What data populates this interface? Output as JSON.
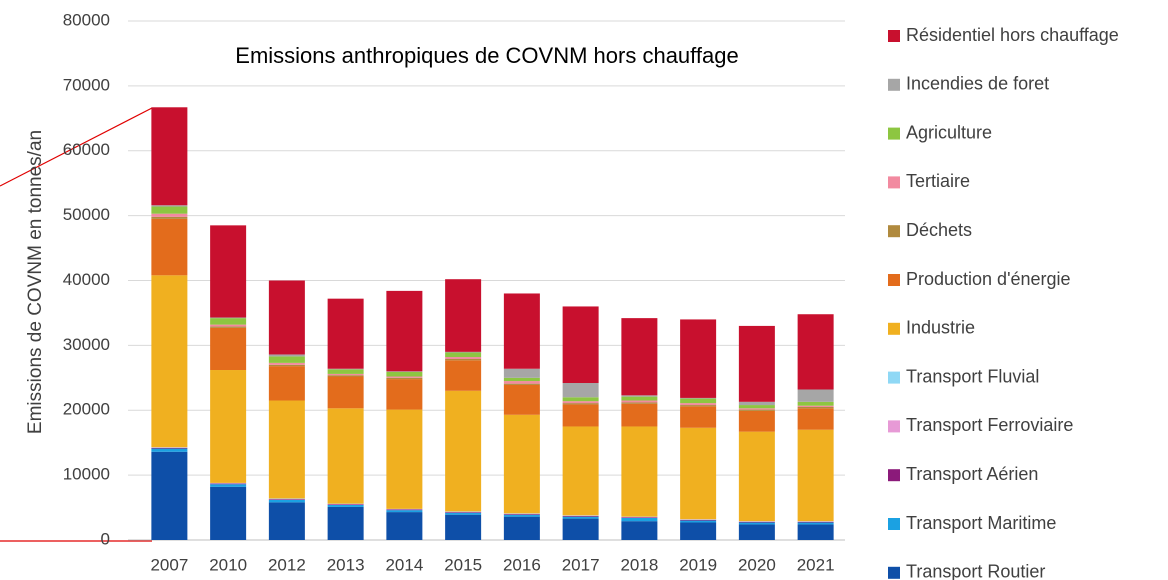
{
  "chart_data": {
    "type": "bar",
    "stacked": true,
    "title": "Emissions anthropiques de COVNM hors chauffage",
    "ylabel": "Emissions de COVNM en tonnes/an",
    "categories": [
      "2007",
      "2010",
      "2012",
      "2013",
      "2014",
      "2015",
      "2016",
      "2017",
      "2018",
      "2019",
      "2020",
      "2021"
    ],
    "ylim": [
      0,
      80000
    ],
    "yticks": [
      0,
      10000,
      20000,
      30000,
      40000,
      50000,
      60000,
      70000,
      80000
    ],
    "grid": true,
    "legend": "right",
    "series": [
      {
        "name": "Transport Routier",
        "color": "#0e4fa8",
        "values": [
          13600,
          8200,
          5800,
          5100,
          4300,
          3900,
          3600,
          3300,
          2900,
          2700,
          2400,
          2400
        ]
      },
      {
        "name": "Transport Maritime",
        "color": "#1ba1e2",
        "values": [
          500,
          400,
          400,
          300,
          300,
          300,
          300,
          300,
          500,
          300,
          300,
          300
        ]
      },
      {
        "name": "Transport Aérien",
        "color": "#8b1a7a",
        "values": [
          100,
          100,
          100,
          100,
          100,
          100,
          100,
          100,
          100,
          100,
          100,
          100
        ]
      },
      {
        "name": "Transport Ferroviaire",
        "color": "#e79ad6",
        "values": [
          50,
          50,
          50,
          50,
          50,
          50,
          50,
          50,
          50,
          50,
          50,
          50
        ]
      },
      {
        "name": "Transport Fluvial",
        "color": "#8fd8f5",
        "values": [
          50,
          50,
          50,
          50,
          50,
          50,
          50,
          50,
          50,
          50,
          50,
          50
        ]
      },
      {
        "name": "Industrie",
        "color": "#f0b020",
        "values": [
          26500,
          17400,
          15100,
          14700,
          15300,
          18600,
          15200,
          13700,
          13900,
          14100,
          13800,
          14100
        ]
      },
      {
        "name": "Production d'énergie",
        "color": "#e36c1c",
        "values": [
          8700,
          6500,
          5300,
          4900,
          4700,
          4700,
          4600,
          3400,
          3500,
          3300,
          3200,
          3300
        ]
      },
      {
        "name": "Déchets",
        "color": "#b08a3e",
        "values": [
          300,
          200,
          200,
          200,
          200,
          200,
          200,
          200,
          200,
          200,
          200,
          200
        ]
      },
      {
        "name": "Tertiaire",
        "color": "#f28aa0",
        "values": [
          500,
          300,
          300,
          200,
          200,
          300,
          400,
          300,
          300,
          300,
          200,
          200
        ]
      },
      {
        "name": "Agriculture",
        "color": "#8dc641",
        "values": [
          1100,
          1000,
          1000,
          700,
          700,
          700,
          500,
          600,
          600,
          700,
          500,
          600
        ]
      },
      {
        "name": "Incendies de foret",
        "color": "#a6a6a6",
        "values": [
          200,
          100,
          300,
          100,
          100,
          100,
          1400,
          2200,
          200,
          100,
          500,
          1900
        ]
      },
      {
        "name": "Résidentiel hors chauffage",
        "color": "#c8102e",
        "values": [
          15100,
          14200,
          11400,
          10800,
          12400,
          11200,
          11600,
          11800,
          11900,
          12100,
          11700,
          11600
        ]
      }
    ]
  }
}
